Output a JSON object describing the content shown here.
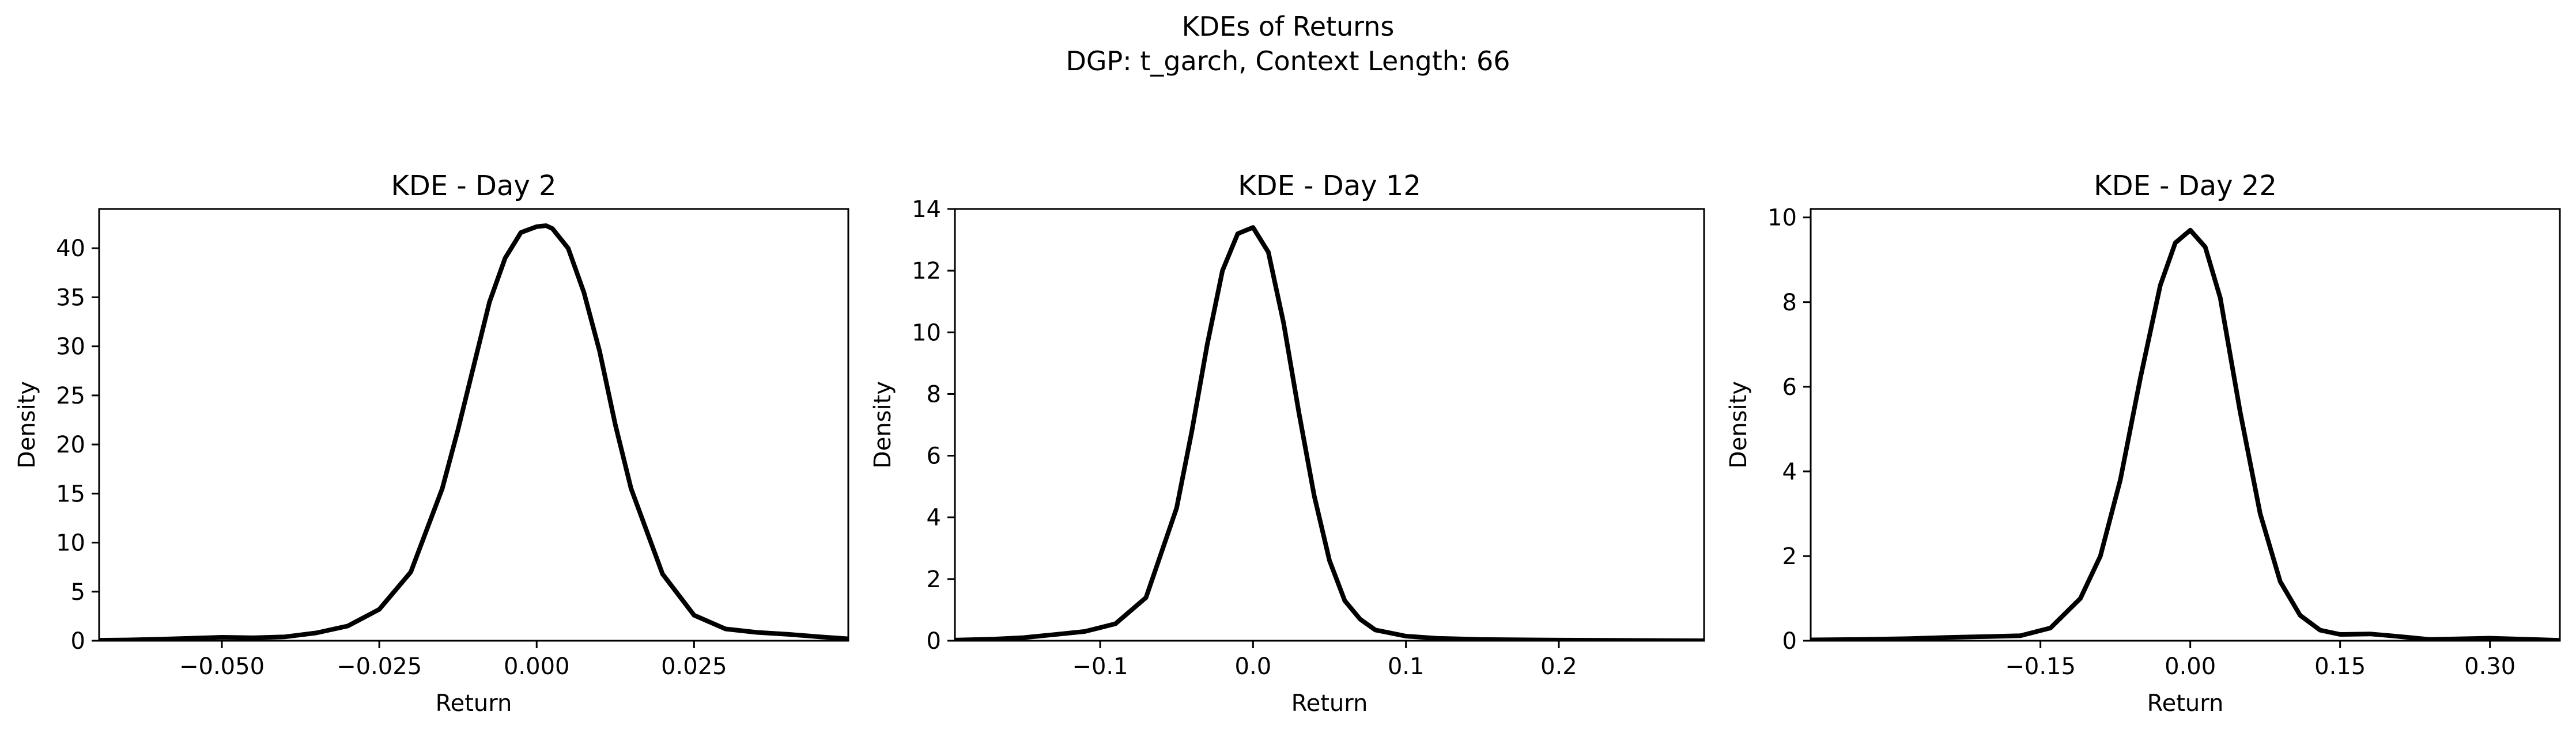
{
  "figure": {
    "suptitle_line1": "KDEs of Returns",
    "suptitle_line2": "DGP: t_garch, Context Length: 66"
  },
  "chart_data": [
    {
      "type": "line",
      "title": "KDE - Day 2",
      "xlabel": "Return",
      "ylabel": "Density",
      "xlim": [
        -0.0695,
        0.0495
      ],
      "ylim": [
        0,
        44
      ],
      "xticks": [
        -0.05,
        -0.025,
        0.0,
        0.025
      ],
      "xtick_labels": [
        "−0.050",
        "−0.025",
        "0.000",
        "0.025"
      ],
      "yticks": [
        0,
        5,
        10,
        15,
        20,
        25,
        30,
        35,
        40
      ],
      "ytick_labels": [
        "0",
        "5",
        "10",
        "15",
        "20",
        "25",
        "30",
        "35",
        "40"
      ],
      "grid": false,
      "series": [
        {
          "color": "#000000",
          "x": [
            -0.0695,
            -0.065,
            -0.06,
            -0.055,
            -0.05,
            -0.045,
            -0.04,
            -0.035,
            -0.03,
            -0.025,
            -0.02,
            -0.015,
            -0.0125,
            -0.01,
            -0.0075,
            -0.005,
            -0.0025,
            0.0,
            0.0015,
            0.0025,
            0.005,
            0.0075,
            0.01,
            0.0125,
            0.015,
            0.02,
            0.025,
            0.03,
            0.035,
            0.04,
            0.045,
            0.0495
          ],
          "y": [
            0.05,
            0.08,
            0.15,
            0.25,
            0.35,
            0.3,
            0.4,
            0.8,
            1.5,
            3.2,
            7.0,
            15.5,
            21.5,
            28.0,
            34.5,
            39.0,
            41.6,
            42.2,
            42.3,
            42.0,
            40.0,
            35.5,
            29.5,
            22.0,
            15.5,
            6.8,
            2.6,
            1.2,
            0.85,
            0.65,
            0.4,
            0.2
          ]
        }
      ]
    },
    {
      "type": "line",
      "title": "KDE - Day 12",
      "xlabel": "Return",
      "ylabel": "Density",
      "xlim": [
        -0.195,
        0.295
      ],
      "ylim": [
        0,
        14
      ],
      "xticks": [
        -0.1,
        0.0,
        0.1,
        0.2
      ],
      "xtick_labels": [
        "−0.1",
        "0.0",
        "0.1",
        "0.2"
      ],
      "yticks": [
        0,
        2,
        4,
        6,
        8,
        10,
        12,
        14
      ],
      "ytick_labels": [
        "0",
        "2",
        "4",
        "6",
        "8",
        "10",
        "12",
        "14"
      ],
      "grid": false,
      "series": [
        {
          "color": "#000000",
          "x": [
            -0.195,
            -0.17,
            -0.15,
            -0.13,
            -0.11,
            -0.09,
            -0.07,
            -0.05,
            -0.04,
            -0.03,
            -0.02,
            -0.01,
            0.0,
            0.01,
            0.02,
            0.03,
            0.04,
            0.05,
            0.06,
            0.07,
            0.08,
            0.1,
            0.12,
            0.15,
            0.2,
            0.25,
            0.295
          ],
          "y": [
            0.02,
            0.05,
            0.1,
            0.2,
            0.3,
            0.55,
            1.4,
            4.3,
            6.8,
            9.6,
            12.0,
            13.2,
            13.4,
            12.6,
            10.3,
            7.4,
            4.7,
            2.6,
            1.3,
            0.7,
            0.35,
            0.15,
            0.08,
            0.04,
            0.02,
            0.01,
            0.0
          ]
        }
      ]
    },
    {
      "type": "line",
      "title": "KDE - Day 22",
      "xlabel": "Return",
      "ylabel": "Density",
      "xlim": [
        -0.38,
        0.37
      ],
      "ylim": [
        0,
        10.2
      ],
      "xticks": [
        -0.15,
        0.0,
        0.15,
        0.3
      ],
      "xtick_labels": [
        "−0.15",
        "0.00",
        "0.15",
        "0.30"
      ],
      "yticks": [
        0,
        2,
        4,
        6,
        8,
        10
      ],
      "ytick_labels": [
        "0",
        "2",
        "4",
        "6",
        "8",
        "10"
      ],
      "grid": false,
      "series": [
        {
          "color": "#000000",
          "x": [
            -0.38,
            -0.33,
            -0.28,
            -0.24,
            -0.2,
            -0.17,
            -0.14,
            -0.11,
            -0.09,
            -0.07,
            -0.05,
            -0.03,
            -0.015,
            0.0,
            0.015,
            0.03,
            0.05,
            0.07,
            0.09,
            0.11,
            0.13,
            0.15,
            0.18,
            0.2,
            0.24,
            0.3,
            0.33,
            0.37
          ],
          "y": [
            0.02,
            0.03,
            0.05,
            0.08,
            0.1,
            0.12,
            0.3,
            1.0,
            2.0,
            3.8,
            6.2,
            8.4,
            9.4,
            9.7,
            9.3,
            8.1,
            5.4,
            3.0,
            1.4,
            0.6,
            0.25,
            0.15,
            0.16,
            0.12,
            0.03,
            0.06,
            0.04,
            0.01
          ]
        }
      ]
    }
  ]
}
